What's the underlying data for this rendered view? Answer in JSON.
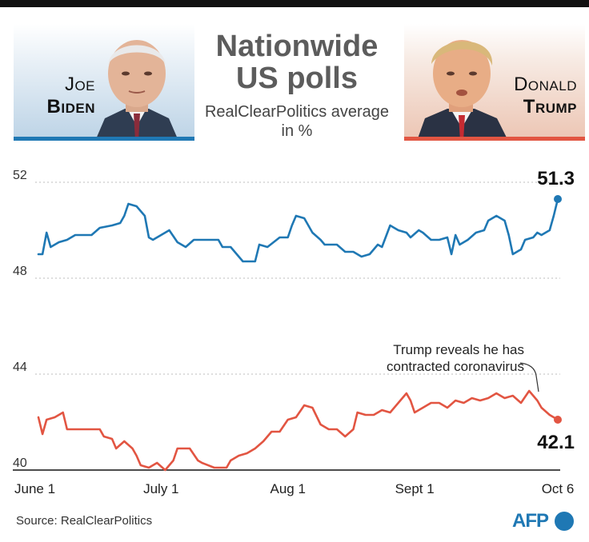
{
  "header": {
    "title_line1": "Nationwide",
    "title_line2": "US polls",
    "subtitle_line1": "RealClearPolitics average",
    "subtitle_line2": "in %"
  },
  "candidates": {
    "biden": {
      "first": "Joe",
      "last": "Biden",
      "color": "#1f78b4"
    },
    "trump": {
      "first": "Donald",
      "last": "Trump",
      "color": "#e25542"
    }
  },
  "chart_data": {
    "type": "line",
    "title": "Nationwide US polls",
    "subtitle": "RealClearPolitics average in %",
    "x_axis": {
      "range": [
        "2020-06-01",
        "2020-10-06"
      ],
      "tick_labels": [
        "June 1",
        "July 1",
        "Aug 1",
        "Sept 1",
        "Oct 6"
      ],
      "tick_dates": [
        "2020-06-01",
        "2020-07-01",
        "2020-08-01",
        "2020-09-01",
        "2020-10-06"
      ]
    },
    "y_axis": {
      "range": [
        40,
        52
      ],
      "tick_labels": [
        "52",
        "48",
        "44",
        "40"
      ],
      "ticks": [
        52,
        48,
        44,
        40
      ]
    },
    "grid": "horizontal dotted",
    "series": [
      {
        "name": "Joe Biden",
        "color": "#1f78b4",
        "points": [
          [
            "2020-06-01",
            49.0
          ],
          [
            "2020-06-02",
            49.0
          ],
          [
            "2020-06-03",
            49.9
          ],
          [
            "2020-06-04",
            49.3
          ],
          [
            "2020-06-06",
            49.5
          ],
          [
            "2020-06-08",
            49.6
          ],
          [
            "2020-06-10",
            49.8
          ],
          [
            "2020-06-14",
            49.8
          ],
          [
            "2020-06-16",
            50.1
          ],
          [
            "2020-06-19",
            50.2
          ],
          [
            "2020-06-21",
            50.3
          ],
          [
            "2020-06-22",
            50.6
          ],
          [
            "2020-06-23",
            51.1
          ],
          [
            "2020-06-25",
            51.0
          ],
          [
            "2020-06-27",
            50.6
          ],
          [
            "2020-06-28",
            49.7
          ],
          [
            "2020-06-29",
            49.6
          ],
          [
            "2020-07-01",
            49.8
          ],
          [
            "2020-07-03",
            50.0
          ],
          [
            "2020-07-05",
            49.5
          ],
          [
            "2020-07-07",
            49.3
          ],
          [
            "2020-07-09",
            49.6
          ],
          [
            "2020-07-15",
            49.6
          ],
          [
            "2020-07-16",
            49.3
          ],
          [
            "2020-07-18",
            49.3
          ],
          [
            "2020-07-20",
            48.9
          ],
          [
            "2020-07-21",
            48.7
          ],
          [
            "2020-07-24",
            48.7
          ],
          [
            "2020-07-25",
            49.4
          ],
          [
            "2020-07-27",
            49.3
          ],
          [
            "2020-07-30",
            49.7
          ],
          [
            "2020-08-01",
            49.7
          ],
          [
            "2020-08-02",
            50.2
          ],
          [
            "2020-08-03",
            50.6
          ],
          [
            "2020-08-05",
            50.5
          ],
          [
            "2020-08-07",
            49.9
          ],
          [
            "2020-08-09",
            49.6
          ],
          [
            "2020-08-10",
            49.4
          ],
          [
            "2020-08-13",
            49.4
          ],
          [
            "2020-08-15",
            49.1
          ],
          [
            "2020-08-17",
            49.1
          ],
          [
            "2020-08-19",
            48.9
          ],
          [
            "2020-08-21",
            49.0
          ],
          [
            "2020-08-23",
            49.4
          ],
          [
            "2020-08-24",
            49.3
          ],
          [
            "2020-08-26",
            50.2
          ],
          [
            "2020-08-28",
            50.0
          ],
          [
            "2020-08-30",
            49.9
          ],
          [
            "2020-08-31",
            49.7
          ],
          [
            "2020-09-02",
            50.0
          ],
          [
            "2020-09-03",
            49.9
          ],
          [
            "2020-09-05",
            49.6
          ],
          [
            "2020-09-07",
            49.6
          ],
          [
            "2020-09-09",
            49.7
          ],
          [
            "2020-09-10",
            49.0
          ],
          [
            "2020-09-11",
            49.8
          ],
          [
            "2020-09-12",
            49.4
          ],
          [
            "2020-09-14",
            49.6
          ],
          [
            "2020-09-16",
            49.9
          ],
          [
            "2020-09-18",
            50.0
          ],
          [
            "2020-09-19",
            50.4
          ],
          [
            "2020-09-21",
            50.6
          ],
          [
            "2020-09-23",
            50.4
          ],
          [
            "2020-09-24",
            49.8
          ],
          [
            "2020-09-25",
            49.0
          ],
          [
            "2020-09-27",
            49.2
          ],
          [
            "2020-09-28",
            49.6
          ],
          [
            "2020-09-30",
            49.7
          ],
          [
            "2020-10-01",
            49.9
          ],
          [
            "2020-10-02",
            49.8
          ],
          [
            "2020-10-04",
            50.0
          ],
          [
            "2020-10-05",
            50.6
          ],
          [
            "2020-10-06",
            51.3
          ]
        ],
        "last_value_label": "51.3"
      },
      {
        "name": "Donald Trump",
        "color": "#e25542",
        "points": [
          [
            "2020-06-01",
            42.2
          ],
          [
            "2020-06-02",
            41.5
          ],
          [
            "2020-06-03",
            42.1
          ],
          [
            "2020-06-05",
            42.2
          ],
          [
            "2020-06-07",
            42.4
          ],
          [
            "2020-06-08",
            41.7
          ],
          [
            "2020-06-09",
            41.7
          ],
          [
            "2020-06-16",
            41.7
          ],
          [
            "2020-06-17",
            41.4
          ],
          [
            "2020-06-19",
            41.3
          ],
          [
            "2020-06-20",
            40.9
          ],
          [
            "2020-06-22",
            41.2
          ],
          [
            "2020-06-24",
            40.9
          ],
          [
            "2020-06-25",
            40.6
          ],
          [
            "2020-06-26",
            40.2
          ],
          [
            "2020-06-28",
            40.1
          ],
          [
            "2020-06-30",
            40.3
          ],
          [
            "2020-07-02",
            40.0
          ],
          [
            "2020-07-04",
            40.4
          ],
          [
            "2020-07-05",
            40.9
          ],
          [
            "2020-07-08",
            40.9
          ],
          [
            "2020-07-10",
            40.4
          ],
          [
            "2020-07-11",
            40.3
          ],
          [
            "2020-07-14",
            40.1
          ],
          [
            "2020-07-17",
            40.1
          ],
          [
            "2020-07-18",
            40.4
          ],
          [
            "2020-07-20",
            40.6
          ],
          [
            "2020-07-22",
            40.7
          ],
          [
            "2020-07-24",
            40.9
          ],
          [
            "2020-07-26",
            41.2
          ],
          [
            "2020-07-28",
            41.6
          ],
          [
            "2020-07-30",
            41.6
          ],
          [
            "2020-08-01",
            42.1
          ],
          [
            "2020-08-03",
            42.2
          ],
          [
            "2020-08-05",
            42.7
          ],
          [
            "2020-08-07",
            42.6
          ],
          [
            "2020-08-09",
            41.9
          ],
          [
            "2020-08-11",
            41.7
          ],
          [
            "2020-08-13",
            41.7
          ],
          [
            "2020-08-15",
            41.4
          ],
          [
            "2020-08-17",
            41.7
          ],
          [
            "2020-08-18",
            42.4
          ],
          [
            "2020-08-20",
            42.3
          ],
          [
            "2020-08-22",
            42.3
          ],
          [
            "2020-08-24",
            42.5
          ],
          [
            "2020-08-26",
            42.4
          ],
          [
            "2020-08-28",
            42.8
          ],
          [
            "2020-08-30",
            43.2
          ],
          [
            "2020-08-31",
            42.9
          ],
          [
            "2020-09-01",
            42.4
          ],
          [
            "2020-09-03",
            42.6
          ],
          [
            "2020-09-05",
            42.8
          ],
          [
            "2020-09-07",
            42.8
          ],
          [
            "2020-09-09",
            42.6
          ],
          [
            "2020-09-11",
            42.9
          ],
          [
            "2020-09-13",
            42.8
          ],
          [
            "2020-09-15",
            43.0
          ],
          [
            "2020-09-17",
            42.9
          ],
          [
            "2020-09-19",
            43.0
          ],
          [
            "2020-09-21",
            43.2
          ],
          [
            "2020-09-23",
            43.0
          ],
          [
            "2020-09-25",
            43.1
          ],
          [
            "2020-09-27",
            42.8
          ],
          [
            "2020-09-29",
            43.3
          ],
          [
            "2020-10-01",
            42.9
          ],
          [
            "2020-10-02",
            42.6
          ],
          [
            "2020-10-04",
            42.3
          ],
          [
            "2020-10-06",
            42.1
          ]
        ],
        "last_value_label": "42.1"
      }
    ],
    "annotations": [
      {
        "text_line1": "Trump reveals he has",
        "text_line2": "contracted coronavirus",
        "date": "2020-10-02"
      }
    ]
  },
  "footer": {
    "source": "Source: RealClearPolitics",
    "logo_text": "AFP"
  }
}
